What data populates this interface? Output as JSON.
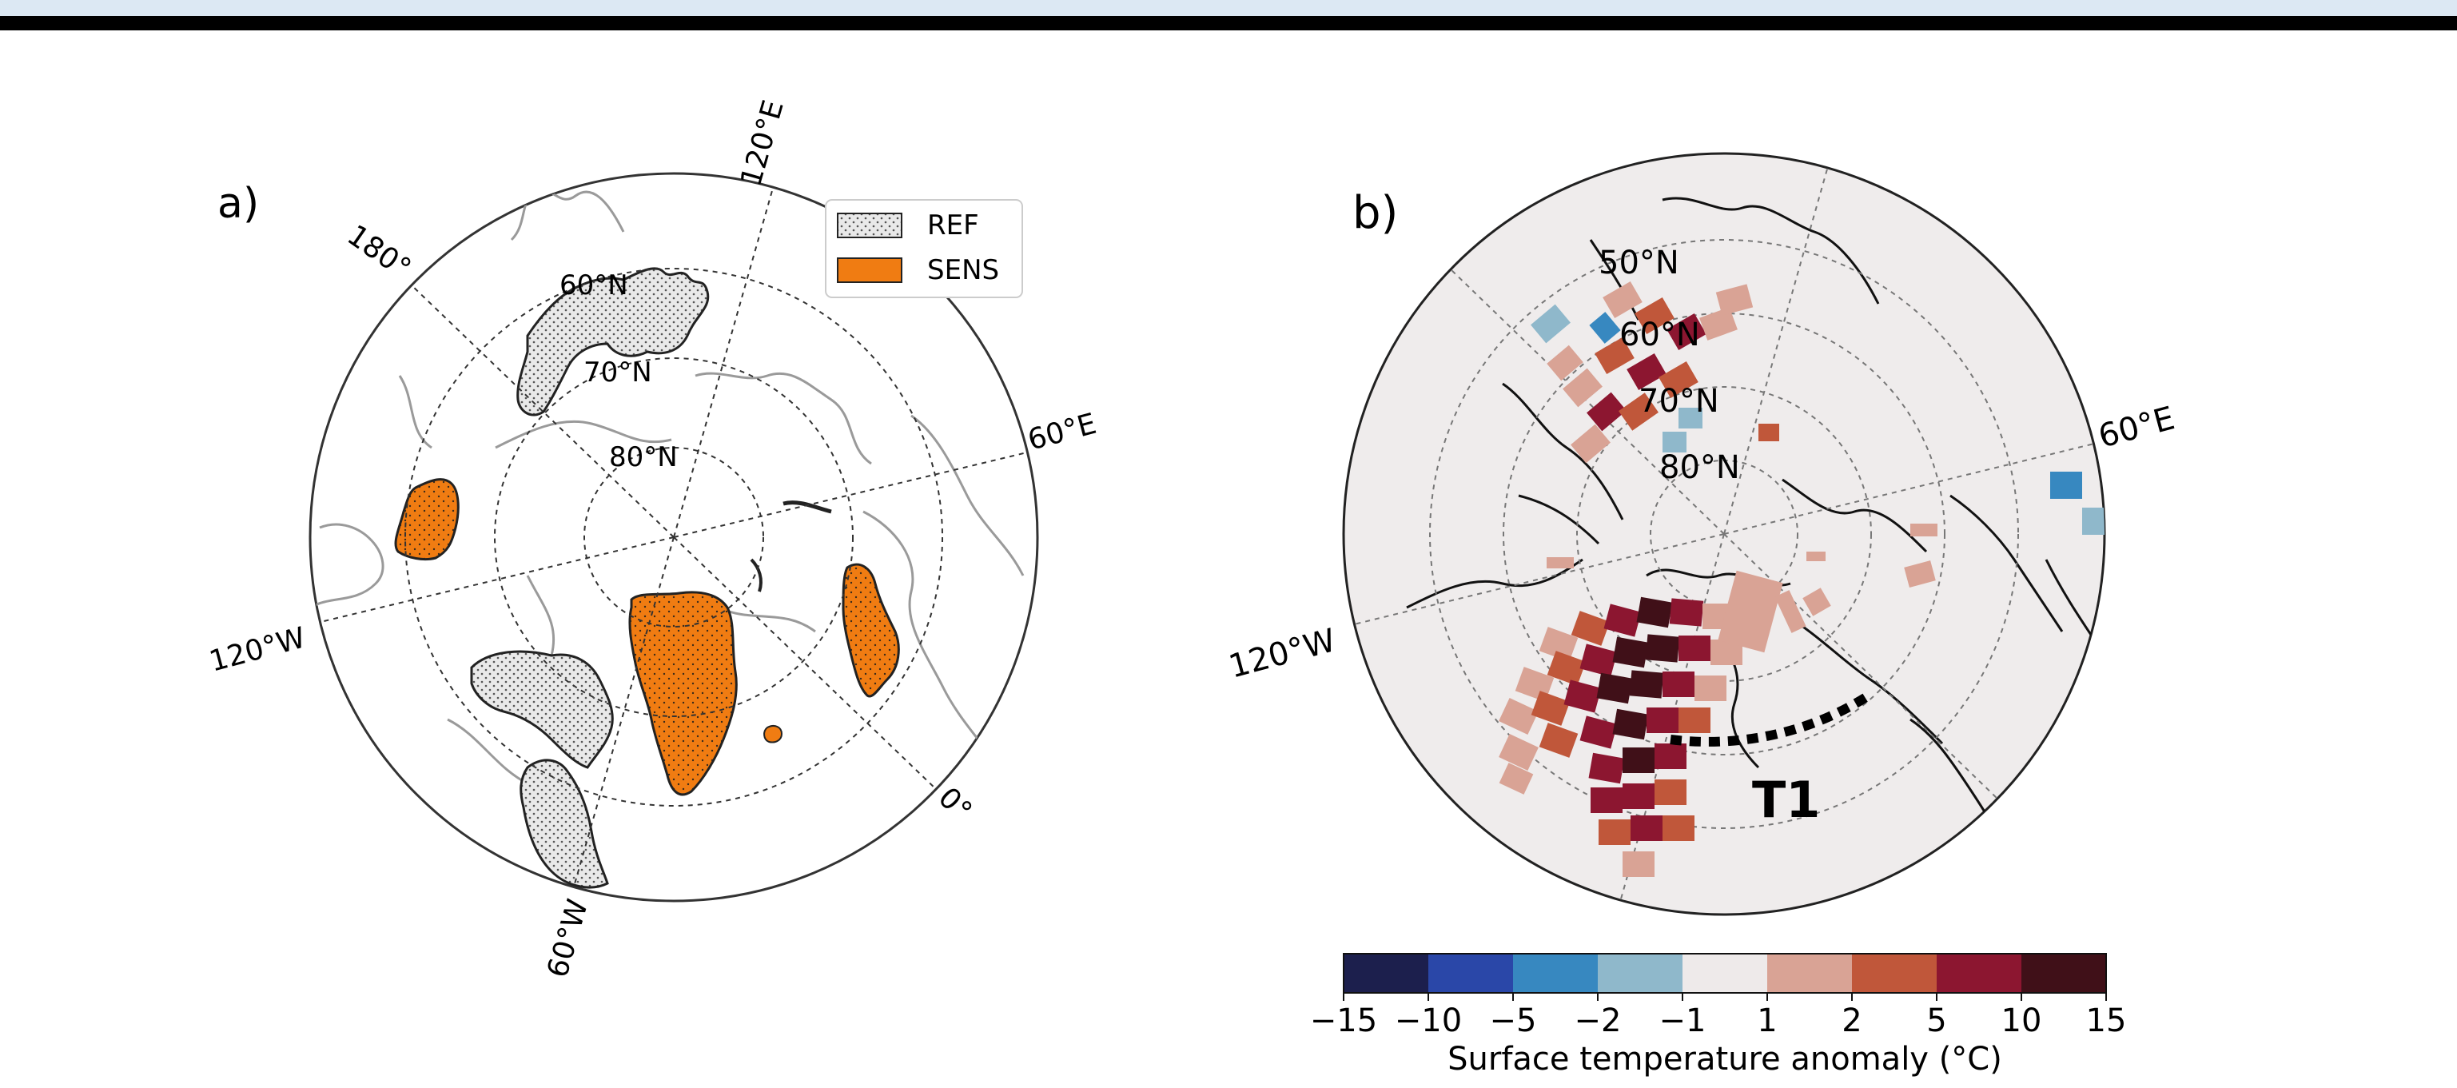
{
  "panel_a": {
    "label": "a)",
    "lat_labels": [
      "60°N",
      "70°N",
      "80°N"
    ],
    "lon_labels": {
      "e120": "120°E",
      "w180": "180°",
      "e60": "60°E",
      "w120": "120°W",
      "e0": "0°",
      "w60": "60°W"
    },
    "legend": [
      {
        "label": "REF",
        "fill": "hatched-gray"
      },
      {
        "label": "SENS",
        "fill": "#f07c12"
      }
    ]
  },
  "panel_b": {
    "label": "b)",
    "lat_labels": [
      "50°N",
      "60°N",
      "70°N",
      "80°N"
    ],
    "lon_labels": {
      "e60": "60°E",
      "w120": "120°W"
    },
    "transect_label": "T1",
    "colorbar": {
      "title": "Surface temperature anomaly (°C)",
      "ticks": [
        "−15",
        "−10",
        "−5",
        "−2",
        "−1",
        "1",
        "2",
        "5",
        "10",
        "15"
      ],
      "colors": [
        "#1c1f4d",
        "#2a47a8",
        "#3788c0",
        "#8fb8cb",
        "#eeeaea",
        "#d9a395",
        "#c0573a",
        "#8c1630",
        "#401018"
      ]
    }
  },
  "colors": {
    "sens": "#f07c12",
    "ref_fill": "#e9e9e9",
    "disk_b": "#efecec",
    "warm_light": "#d9a395",
    "warm_mid": "#c0573a",
    "warm_dark": "#8c1630",
    "warm_darkest": "#401018",
    "cold_light": "#8fb8cb",
    "cold_mid": "#3788c0"
  }
}
